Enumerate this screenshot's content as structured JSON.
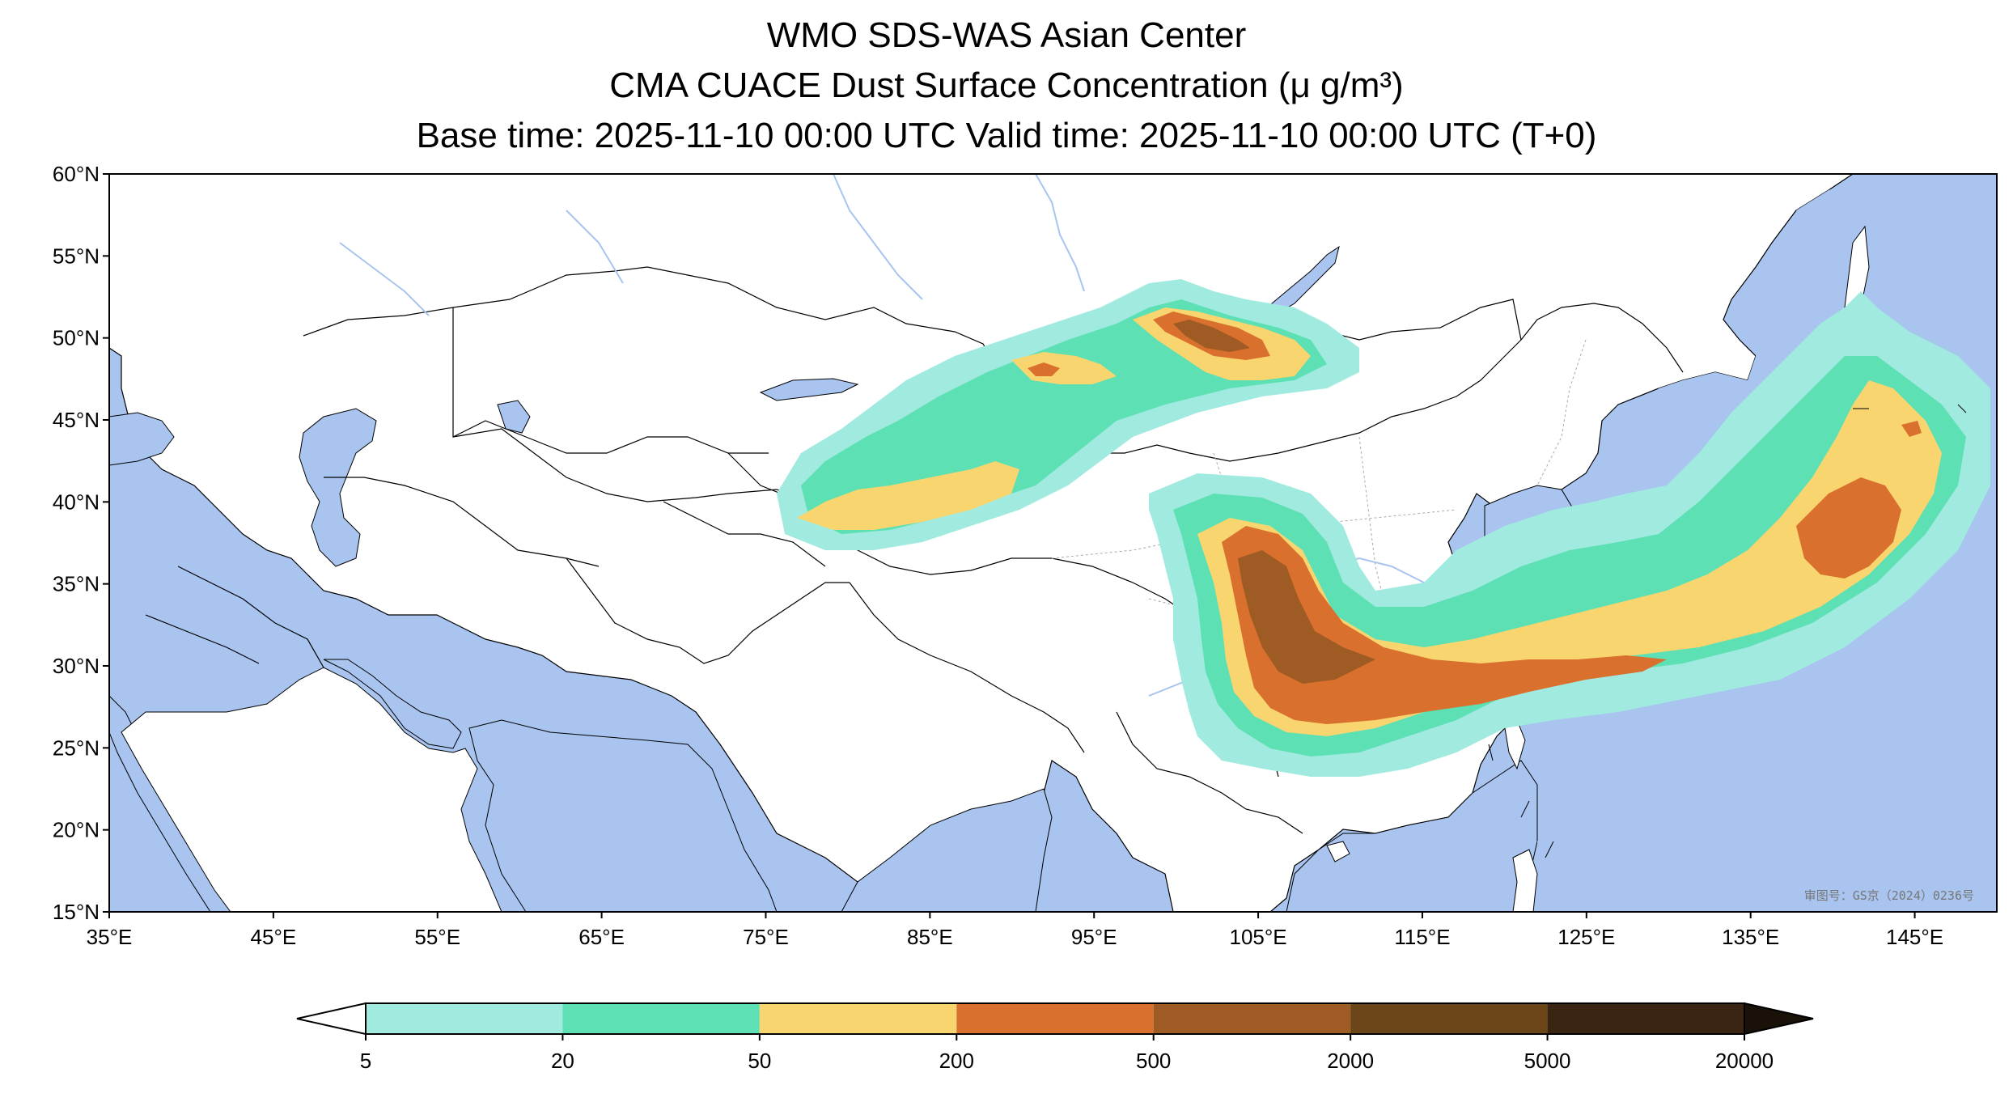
{
  "title": {
    "line1": "WMO SDS-WAS Asian Center",
    "line2": "CMA CUACE Dust Surface Concentration (μ g/m³)",
    "line3": "Base time: 2025-11-10 00:00 UTC Valid time: 2025-11-10 00:00 UTC (T+0)"
  },
  "map": {
    "lon_range": [
      35,
      150
    ],
    "lat_range": [
      15,
      60
    ],
    "lat_ticks": [
      "60°N",
      "55°N",
      "50°N",
      "45°N",
      "40°N",
      "35°N",
      "30°N",
      "25°N",
      "20°N",
      "15°N"
    ],
    "lon_ticks": [
      "35°E",
      "45°E",
      "55°E",
      "65°E",
      "75°E",
      "85°E",
      "95°E",
      "105°E",
      "115°E",
      "125°E",
      "135°E",
      "145°E"
    ],
    "stamp": "审图号：GS京（2024）0236号",
    "colors": {
      "sea": "#a8c4ef",
      "land": "#ffffff",
      "border": "#000000",
      "river": "#a8c4ef"
    }
  },
  "colorbar": {
    "levels": [
      "5",
      "20",
      "50",
      "200",
      "500",
      "2000",
      "5000",
      "20000"
    ],
    "colors": [
      "#ffffff",
      "#a0eadf",
      "#5de0b4",
      "#f8d56f",
      "#d9702d",
      "#9e5b23",
      "#6b4518",
      "#3a2412",
      "#1a1208"
    ]
  }
}
